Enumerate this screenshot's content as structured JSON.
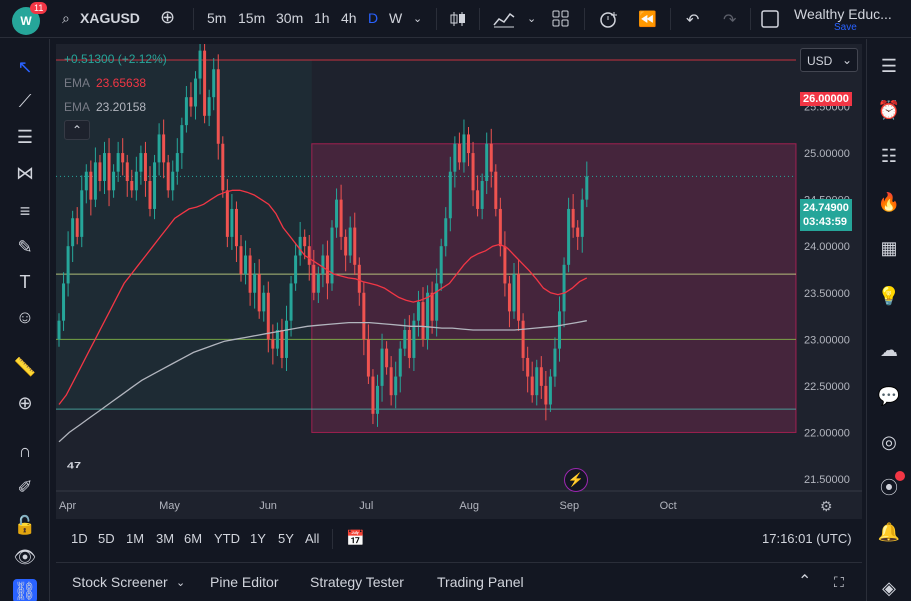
{
  "topbar": {
    "badge_count": "11",
    "logo_text": "W",
    "symbol": "XAGUSD",
    "intervals": [
      "5m",
      "15m",
      "30m",
      "1h",
      "4h",
      "D",
      "W"
    ],
    "active_interval": "D",
    "account_name": "Wealthy Educ...",
    "save_label": "Save"
  },
  "legend": {
    "change": "+0.51300 (+2.12%)",
    "ema1_label": "EMA",
    "ema1_value": "23.65638",
    "ema2_label": "EMA",
    "ema2_value": "23.20158",
    "currency": "USD"
  },
  "price_tags": {
    "top_line": "26.00000",
    "current": "24.74900",
    "countdown": "03:43:59"
  },
  "colors": {
    "up": "#26a69a",
    "down": "#ef5350",
    "ema_fast": "#f23645",
    "ema_slow": "#b2b5be",
    "range_box": "#8e2a5a",
    "accent": "#2962ff"
  },
  "chart_data": {
    "type": "candlestick",
    "symbol": "XAGUSD",
    "x_tick_labels": [
      "Apr",
      "May",
      "Jun",
      "Jul",
      "Aug",
      "Sep",
      "Oct"
    ],
    "y_tick_labels": [
      "26.00000",
      "25.50000",
      "25.00000",
      "24.50000",
      "24.00000",
      "23.50000",
      "23.00000",
      "22.50000",
      "22.00000",
      "21.50000"
    ],
    "ylim": [
      21.5,
      26.3
    ],
    "horizontal_lines": [
      26.0,
      23.7,
      23.0,
      22.25
    ],
    "range_box": {
      "top": 25.1,
      "bottom": 22.0,
      "from_index": 56,
      "to": "right-edge"
    },
    "close_series": [
      23.2,
      23.6,
      24.0,
      24.3,
      24.1,
      24.6,
      24.8,
      24.5,
      24.9,
      24.7,
      25.0,
      24.6,
      24.8,
      25.0,
      24.9,
      24.7,
      24.6,
      24.8,
      25.0,
      24.7,
      24.4,
      24.9,
      25.2,
      24.9,
      24.6,
      24.8,
      25.0,
      25.3,
      25.6,
      25.5,
      25.8,
      26.1,
      25.4,
      25.6,
      25.9,
      25.1,
      24.6,
      24.1,
      24.4,
      24.0,
      23.7,
      23.9,
      23.5,
      23.7,
      23.3,
      23.5,
      23.0,
      22.9,
      23.1,
      22.8,
      23.2,
      23.6,
      23.9,
      24.1,
      24.0,
      23.8,
      23.5,
      23.7,
      23.9,
      23.6,
      24.2,
      24.5,
      24.1,
      23.9,
      24.2,
      23.8,
      23.5,
      23.0,
      22.6,
      22.2,
      22.5,
      22.9,
      22.7,
      22.4,
      22.6,
      22.9,
      23.1,
      22.8,
      23.2,
      23.4,
      23.0,
      23.5,
      23.2,
      23.6,
      24.0,
      24.3,
      24.8,
      25.1,
      24.9,
      25.2,
      25.0,
      24.6,
      24.4,
      24.7,
      25.1,
      24.8,
      24.4,
      24.0,
      23.6,
      23.3,
      23.7,
      23.2,
      22.8,
      22.6,
      22.4,
      22.7,
      22.5,
      22.3,
      22.6,
      22.9,
      23.3,
      23.8,
      24.4,
      24.2,
      24.1,
      24.5,
      24.749
    ],
    "ema_fast": [
      22.3,
      22.4,
      22.55,
      22.7,
      22.85,
      23.0,
      23.15,
      23.3,
      23.45,
      23.6,
      23.7,
      23.8,
      23.9,
      24.0,
      24.1,
      24.2,
      24.3,
      24.35,
      24.4,
      24.42,
      24.45,
      24.5,
      24.55,
      24.58,
      24.6,
      24.6,
      24.58,
      24.55,
      24.5,
      24.45,
      24.35,
      24.2,
      24.1,
      24.0,
      23.9,
      23.85,
      23.8,
      23.75,
      23.7,
      23.68,
      23.66,
      23.65,
      23.62,
      23.6,
      23.58,
      23.55,
      23.5,
      23.45,
      23.42,
      23.4,
      23.42,
      23.45,
      23.5,
      23.55,
      23.6,
      23.7,
      23.8,
      23.88,
      23.92,
      23.95,
      24.0,
      24.02,
      23.98,
      23.9,
      23.82,
      23.74,
      23.65,
      23.55,
      23.5,
      23.48,
      23.5,
      23.55,
      23.62,
      23.66
    ],
    "ema_slow": [
      21.9,
      22.0,
      22.08,
      22.16,
      22.24,
      22.32,
      22.4,
      22.48,
      22.56,
      22.62,
      22.68,
      22.74,
      22.8,
      22.86,
      22.9,
      22.94,
      22.98,
      23.0,
      23.02,
      23.04,
      23.06,
      23.08,
      23.1,
      23.12,
      23.14,
      23.15,
      23.16,
      23.17,
      23.18,
      23.18,
      23.18,
      23.17,
      23.16,
      23.15,
      23.14,
      23.14,
      23.13,
      23.12,
      23.12,
      23.11,
      23.1,
      23.1,
      23.1,
      23.1,
      23.1,
      23.11,
      23.12,
      23.13,
      23.14,
      23.16,
      23.18,
      23.2
    ]
  },
  "bottombar": {
    "ranges": [
      "1D",
      "5D",
      "1M",
      "3M",
      "6M",
      "YTD",
      "1Y",
      "5Y",
      "All"
    ],
    "clock": "17:16:01 (UTC)"
  },
  "panels": [
    "Stock Screener",
    "Pine Editor",
    "Strategy Tester",
    "Trading Panel"
  ]
}
